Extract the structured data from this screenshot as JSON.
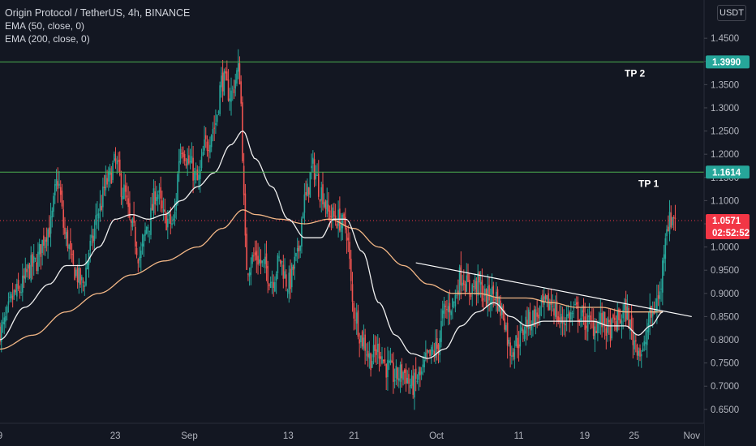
{
  "legend": {
    "title": "Origin Protocol / TetherUS, 4h, BINANCE",
    "ema50": "EMA (50, close, 0)",
    "ema200": "EMA (200, close, 0)"
  },
  "currency": "USDT",
  "chart_data": {
    "type": "candlestick",
    "ylim": [
      0.62,
      1.48
    ],
    "y_ticks": [
      0.65,
      0.7,
      0.75,
      0.8,
      0.85,
      0.9,
      0.95,
      1.0,
      1.05,
      1.1,
      1.15,
      1.2,
      1.25,
      1.3,
      1.35,
      1.4,
      1.45
    ],
    "y_tick_labels": [
      "0.6500",
      "0.7000",
      "0.7500",
      "0.8000",
      "0.8500",
      "0.9000",
      "0.9500",
      "1.0000",
      "1.0500",
      "1.1000",
      "1.1500",
      "1.2000",
      "1.2500",
      "1.3000",
      "1.3500",
      "1.4000",
      "1.4500"
    ],
    "x_ticks": [
      {
        "label": "9",
        "t": 0
      },
      {
        "label": "23",
        "t": 14
      },
      {
        "label": "Sep",
        "t": 23
      },
      {
        "label": "13",
        "t": 35
      },
      {
        "label": "21",
        "t": 43
      },
      {
        "label": "Oct",
        "t": 53
      },
      {
        "label": "11",
        "t": 63
      },
      {
        "label": "19",
        "t": 71
      },
      {
        "label": "25",
        "t": 77
      },
      {
        "label": "Nov",
        "t": 84
      }
    ],
    "levels": [
      {
        "name": "TP 2",
        "value": 1.399,
        "label": "1.3990",
        "color": "#4caf50"
      },
      {
        "name": "TP 1",
        "value": 1.1614,
        "label": "1.1614",
        "color": "#4caf50"
      }
    ],
    "last_price": {
      "value": 1.0571,
      "label": "1.0571",
      "countdown": "02:52:52",
      "color": "#f23645"
    },
    "trendline": {
      "from": {
        "t": 50.5,
        "y": 0.966
      },
      "to": {
        "t": 84,
        "y": 0.85
      },
      "color": "#ffffff"
    },
    "price_path": [
      [
        0,
        0.82
      ],
      [
        2,
        0.9
      ],
      [
        4,
        0.96
      ],
      [
        6,
        1.04
      ],
      [
        7,
        1.14
      ],
      [
        8,
        1.02
      ],
      [
        9,
        0.95
      ],
      [
        10,
        0.92
      ],
      [
        11,
        1.0
      ],
      [
        12,
        1.08
      ],
      [
        13,
        1.14
      ],
      [
        14,
        1.18
      ],
      [
        15,
        1.12
      ],
      [
        16,
        1.04
      ],
      [
        17,
        0.98
      ],
      [
        18,
        1.05
      ],
      [
        19,
        1.12
      ],
      [
        20,
        1.06
      ],
      [
        21,
        1.05
      ],
      [
        22,
        1.22
      ],
      [
        23,
        1.18
      ],
      [
        24,
        1.14
      ],
      [
        25,
        1.22
      ],
      [
        26,
        1.26
      ],
      [
        27,
        1.36
      ],
      [
        28,
        1.33
      ],
      [
        29,
        1.38
      ],
      [
        30,
        0.96
      ],
      [
        31,
        0.98
      ],
      [
        32,
        0.96
      ],
      [
        33,
        0.93
      ],
      [
        34,
        0.97
      ],
      [
        35,
        0.92
      ],
      [
        36,
        0.97
      ],
      [
        37,
        1.1
      ],
      [
        38,
        1.17
      ],
      [
        39,
        1.12
      ],
      [
        40,
        1.07
      ],
      [
        41,
        1.06
      ],
      [
        42,
        1.04
      ],
      [
        43,
        0.86
      ],
      [
        44,
        0.8
      ],
      [
        45,
        0.76
      ],
      [
        46,
        0.78
      ],
      [
        47,
        0.74
      ],
      [
        48,
        0.72
      ],
      [
        49,
        0.73
      ],
      [
        50,
        0.7
      ],
      [
        51,
        0.72
      ],
      [
        52,
        0.76
      ],
      [
        53,
        0.78
      ],
      [
        54,
        0.86
      ],
      [
        55,
        0.88
      ],
      [
        56,
        0.94
      ],
      [
        57,
        0.91
      ],
      [
        58,
        0.92
      ],
      [
        59,
        0.89
      ],
      [
        60,
        0.9
      ],
      [
        61,
        0.86
      ],
      [
        62,
        0.78
      ],
      [
        63,
        0.8
      ],
      [
        64,
        0.84
      ],
      [
        65,
        0.85
      ],
      [
        66,
        0.87
      ],
      [
        67,
        0.88
      ],
      [
        68,
        0.84
      ],
      [
        69,
        0.85
      ],
      [
        70,
        0.86
      ],
      [
        71,
        0.84
      ],
      [
        72,
        0.83
      ],
      [
        73,
        0.84
      ],
      [
        74,
        0.82
      ],
      [
        75,
        0.84
      ],
      [
        76,
        0.86
      ],
      [
        77,
        0.8
      ],
      [
        78,
        0.77
      ],
      [
        79,
        0.85
      ],
      [
        80,
        0.89
      ],
      [
        81,
        1.05
      ],
      [
        82,
        1.07
      ]
    ],
    "ema50": [
      [
        0,
        0.8
      ],
      [
        3,
        0.87
      ],
      [
        6,
        0.92
      ],
      [
        8,
        0.96
      ],
      [
        10,
        0.96
      ],
      [
        12,
        1.0
      ],
      [
        14,
        1.06
      ],
      [
        16,
        1.07
      ],
      [
        18,
        1.06
      ],
      [
        20,
        1.07
      ],
      [
        22,
        1.1
      ],
      [
        24,
        1.13
      ],
      [
        26,
        1.16
      ],
      [
        28,
        1.22
      ],
      [
        29.5,
        1.25
      ],
      [
        31,
        1.19
      ],
      [
        33,
        1.13
      ],
      [
        35,
        1.06
      ],
      [
        37,
        1.02
      ],
      [
        39,
        1.02
      ],
      [
        40.5,
        1.06
      ],
      [
        42,
        1.06
      ],
      [
        44,
        0.99
      ],
      [
        46,
        0.88
      ],
      [
        48,
        0.81
      ],
      [
        50,
        0.77
      ],
      [
        52,
        0.76
      ],
      [
        54,
        0.78
      ],
      [
        56,
        0.83
      ],
      [
        58,
        0.86
      ],
      [
        60,
        0.88
      ],
      [
        62,
        0.85
      ],
      [
        64,
        0.83
      ],
      [
        66,
        0.84
      ],
      [
        68,
        0.84
      ],
      [
        70,
        0.84
      ],
      [
        72,
        0.84
      ],
      [
        74,
        0.83
      ],
      [
        76,
        0.83
      ],
      [
        77.5,
        0.81
      ],
      [
        79,
        0.83
      ],
      [
        80.5,
        0.86
      ]
    ],
    "ema200": [
      [
        0,
        0.78
      ],
      [
        4,
        0.81
      ],
      [
        8,
        0.86
      ],
      [
        12,
        0.9
      ],
      [
        16,
        0.94
      ],
      [
        20,
        0.97
      ],
      [
        24,
        1.0
      ],
      [
        27,
        1.04
      ],
      [
        29.5,
        1.08
      ],
      [
        31,
        1.07
      ],
      [
        34,
        1.06
      ],
      [
        37,
        1.05
      ],
      [
        40,
        1.06
      ],
      [
        43,
        1.04
      ],
      [
        46,
        1.0
      ],
      [
        49,
        0.96
      ],
      [
        52,
        0.92
      ],
      [
        55,
        0.9
      ],
      [
        58,
        0.9
      ],
      [
        61,
        0.89
      ],
      [
        64,
        0.89
      ],
      [
        67,
        0.88
      ],
      [
        70,
        0.87
      ],
      [
        73,
        0.87
      ],
      [
        76,
        0.86
      ],
      [
        78,
        0.86
      ],
      [
        80.5,
        0.86
      ]
    ]
  },
  "series_colors": {
    "up": "#26a69a",
    "down": "#ef5350",
    "ema50": "#f0f0f0",
    "ema200": "#f3b786",
    "background": "#131722",
    "axis_bg": "#131722",
    "grid": "#1e222d"
  }
}
